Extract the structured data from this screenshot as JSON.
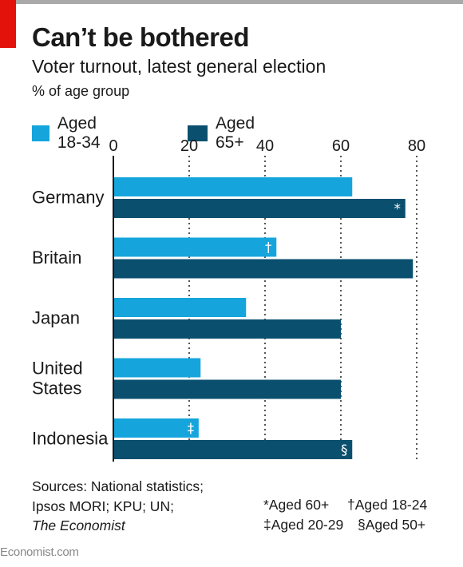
{
  "header": {
    "title": "Can’t be bothered",
    "subtitle": "Voter turnout, latest general election",
    "unit": "% of age group"
  },
  "colors": {
    "accent": "#e3120b",
    "young": "#15a5dc",
    "old": "#0a4f6e",
    "grid": "#555555"
  },
  "chart_data": {
    "type": "bar",
    "orientation": "horizontal",
    "categories": [
      "Germany",
      "Britain",
      "Japan",
      "United States",
      "Indonesia"
    ],
    "category_labels": [
      [
        "Germany"
      ],
      [
        "Britain"
      ],
      [
        "Japan"
      ],
      [
        "United",
        "States"
      ],
      [
        "Indonesia"
      ]
    ],
    "series": [
      {
        "name": "Aged 18-34",
        "values": [
          63,
          43,
          35,
          23,
          22.5
        ],
        "markers": [
          "",
          "†",
          "",
          "",
          "‡"
        ]
      },
      {
        "name": "Aged 65+",
        "values": [
          77,
          79,
          60,
          60,
          63
        ],
        "markers": [
          "*",
          "",
          "",
          "",
          "§"
        ]
      }
    ],
    "xlim": [
      0,
      80
    ],
    "xticks": [
      0,
      20,
      40,
      60,
      80
    ],
    "grid": true,
    "legend": "top-left"
  },
  "sources": {
    "line1": "Sources: National statistics;",
    "line2": "Ipsos MORI; KPU; UN;",
    "line3": "The Economist"
  },
  "footnotes": {
    "star": "*Aged 60+",
    "dagger": "†Aged 18-24",
    "ddagger": "‡Aged 20-29",
    "section": "§Aged 50+"
  },
  "brand": "Economist.com"
}
